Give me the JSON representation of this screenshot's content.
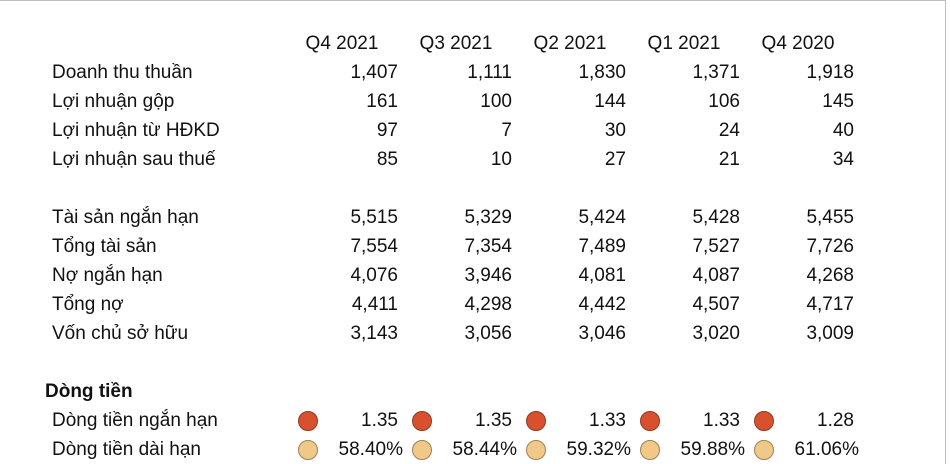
{
  "columns": [
    "Q4 2021",
    "Q3 2021",
    "Q2 2021",
    "Q1 2021",
    "Q4 2020"
  ],
  "income_rows": [
    {
      "label": "Doanh thu thuần",
      "values": [
        "1,407",
        "1,111",
        "1,830",
        "1,371",
        "1,918"
      ]
    },
    {
      "label": "Lợi nhuận gộp",
      "values": [
        "161",
        "100",
        "144",
        "106",
        "145"
      ]
    },
    {
      "label": "Lợi nhuận từ HĐKD",
      "values": [
        "97",
        "7",
        "30",
        "24",
        "40"
      ]
    },
    {
      "label": "Lợi nhuận sau thuế",
      "values": [
        "85",
        "10",
        "27",
        "21",
        "34"
      ]
    }
  ],
  "balance_rows": [
    {
      "label": "Tài sản ngắn hạn",
      "values": [
        "5,515",
        "5,329",
        "5,424",
        "5,428",
        "5,455"
      ]
    },
    {
      "label": "Tổng tài sản",
      "values": [
        "7,554",
        "7,354",
        "7,489",
        "7,527",
        "7,726"
      ]
    },
    {
      "label": "Nợ ngắn hạn",
      "values": [
        "4,076",
        "3,946",
        "4,081",
        "4,087",
        "4,268"
      ]
    },
    {
      "label": "Tổng nợ",
      "values": [
        "4,411",
        "4,298",
        "4,442",
        "4,507",
        "4,717"
      ]
    },
    {
      "label": "Vốn chủ sở hữu",
      "values": [
        "3,143",
        "3,056",
        "3,046",
        "3,020",
        "3,009"
      ]
    }
  ],
  "cashflow": {
    "title": "Dòng tiền",
    "rows": [
      {
        "label": "Dòng tiền ngắn hạn",
        "indicator_color": "#d9502e",
        "values": [
          "1.35",
          "1.35",
          "1.33",
          "1.33",
          "1.28"
        ]
      },
      {
        "label": "Dòng tiền dài hạn",
        "indicator_color": "#f0c989",
        "values": [
          "58.40%",
          "58.44%",
          "59.32%",
          "59.88%",
          "61.06%"
        ]
      }
    ]
  }
}
